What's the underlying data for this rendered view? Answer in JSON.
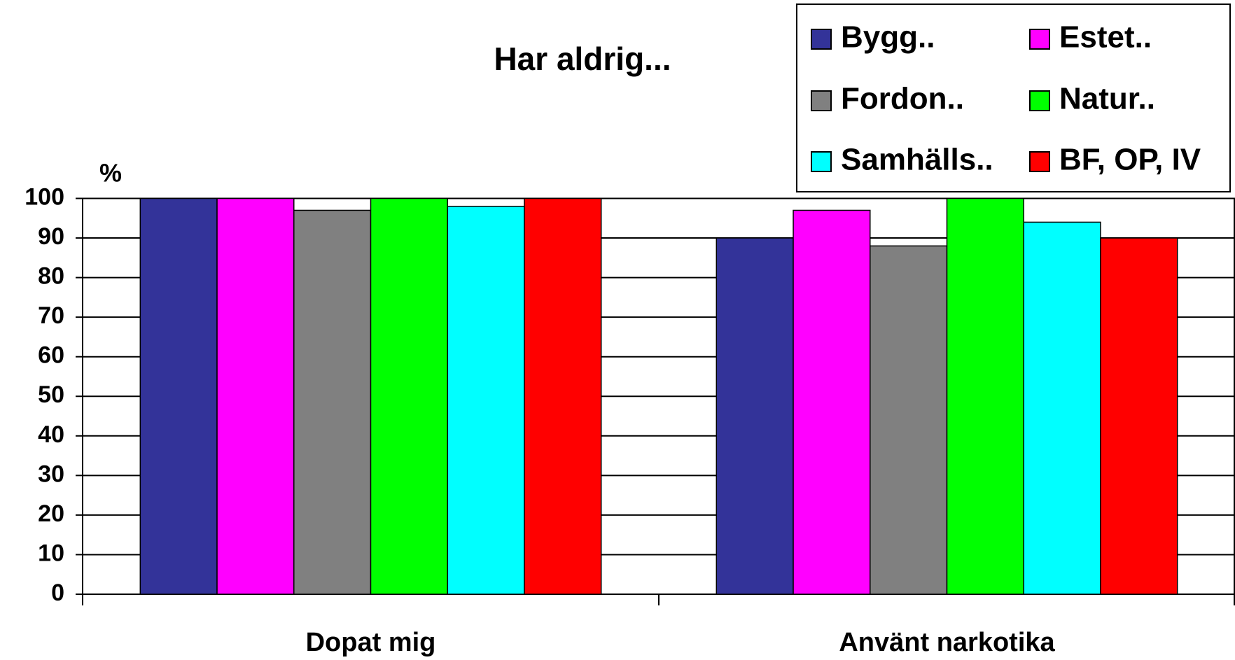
{
  "chart_data": {
    "type": "bar",
    "title": "Har aldrig...",
    "y_label": "%",
    "categories": [
      "Dopat mig",
      "Använt narkotika"
    ],
    "series": [
      {
        "name": "Bygg..",
        "color": "#333399",
        "values": [
          100,
          90
        ]
      },
      {
        "name": "Estet..",
        "color": "#ff00ff",
        "values": [
          100,
          97
        ]
      },
      {
        "name": "Fordon..",
        "color": "#808080",
        "values": [
          97,
          88
        ]
      },
      {
        "name": "Natur..",
        "color": "#00ff00",
        "values": [
          100,
          100
        ]
      },
      {
        "name": "Samhälls..",
        "color": "#00ffff",
        "values": [
          98,
          94
        ]
      },
      {
        "name": "BF, OP, IV",
        "color": "#ff0000",
        "values": [
          100,
          90
        ]
      }
    ],
    "ylim": [
      0,
      100
    ],
    "yticks": [
      0,
      10,
      20,
      30,
      40,
      50,
      60,
      70,
      80,
      90,
      100
    ],
    "grid": true,
    "legend": "top-right"
  }
}
